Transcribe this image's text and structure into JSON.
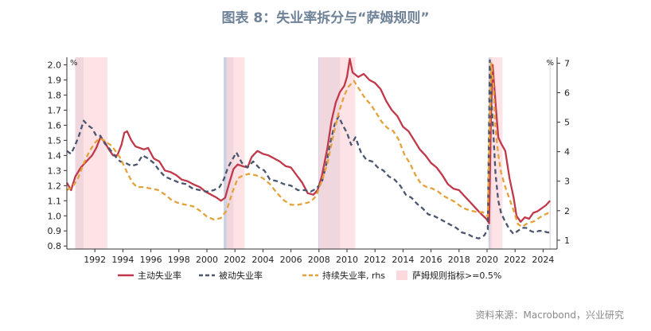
{
  "title": "图表 8：失业率拆分与“萨姆规则”",
  "source": "资料来源：Macrobond，兴业研究",
  "chart_data": {
    "type": "line",
    "title": "图表 8：失业率拆分与“萨姆规则”",
    "xlabel": "",
    "ylabel": "%",
    "y2label": "%",
    "xlim": [
      1990.0,
      2025.0
    ],
    "ylim": [
      0.78,
      2.05
    ],
    "y2lim": [
      0.7,
      7.2
    ],
    "xticks": [
      1992,
      1994,
      1996,
      1998,
      2000,
      2002,
      2004,
      2006,
      2008,
      2010,
      2012,
      2014,
      2016,
      2018,
      2020,
      2022,
      2024
    ],
    "xtick_labels": [
      "1992",
      "1994",
      "1996",
      "1998",
      "2000",
      "2002",
      "2004",
      "2006",
      "2008",
      "2010",
      "2012",
      "2014",
      "2016",
      "2018",
      "2020",
      "2022",
      "2024"
    ],
    "yticks": [
      0.8,
      0.9,
      1.0,
      1.1,
      1.2,
      1.3,
      1.4,
      1.5,
      1.6,
      1.7,
      1.8,
      1.9,
      2.0
    ],
    "ytick_labels": [
      "0.8",
      "0.9",
      "1.0",
      "1.1",
      "1.2",
      "1.3",
      "1.4",
      "1.5",
      "1.6",
      "1.7",
      "1.8",
      "1.9",
      "2.0"
    ],
    "y2ticks": [
      1,
      2,
      3,
      4,
      5,
      6,
      7
    ],
    "y2tick_labels": [
      "1",
      "2",
      "3",
      "4",
      "5",
      "6",
      "7"
    ],
    "legend_position": "bottom",
    "grid": false,
    "bands": [
      {
        "kind": "recession",
        "x0": 1990.6,
        "x1": 1991.2,
        "color": "#c8cee0"
      },
      {
        "kind": "recession",
        "x0": 2001.2,
        "x1": 2001.9,
        "color": "#c8cee0"
      },
      {
        "kind": "recession",
        "x0": 2007.95,
        "x1": 2009.5,
        "color": "#c8cee0"
      },
      {
        "kind": "recession",
        "x0": 2020.1,
        "x1": 2020.35,
        "color": "#c8cee0"
      },
      {
        "kind": "sahm",
        "x0": 1990.6,
        "x1": 1992.9,
        "color": "#fcd9dc"
      },
      {
        "kind": "sahm",
        "x0": 2001.4,
        "x1": 2002.7,
        "color": "#fcd9dc"
      },
      {
        "kind": "sahm",
        "x0": 2008.0,
        "x1": 2010.6,
        "color": "#fcd9dc"
      },
      {
        "kind": "sahm",
        "x0": 2020.2,
        "x1": 2021.1,
        "color": "#fcd9dc"
      }
    ],
    "vlines": [
      2024.5
    ],
    "series": [
      {
        "name": "主动失业率",
        "axis": "left",
        "color": "#c1384a",
        "dash": "solid",
        "x": [
          1990.0,
          1990.3,
          1990.6,
          1991.0,
          1991.4,
          1991.8,
          1992.1,
          1992.4,
          1992.7,
          1993.0,
          1993.3,
          1993.6,
          1993.9,
          1994.1,
          1994.3,
          1994.6,
          1994.9,
          1995.2,
          1995.5,
          1995.8,
          1996.2,
          1996.6,
          1997.0,
          1997.4,
          1997.8,
          1998.2,
          1998.6,
          1999.0,
          1999.5,
          1999.9,
          2000.3,
          2000.7,
          2001.0,
          2001.3,
          2001.6,
          2001.9,
          2002.2,
          2002.5,
          2002.9,
          2003.2,
          2003.6,
          2004.0,
          2004.4,
          2004.8,
          2005.2,
          2005.6,
          2006.0,
          2006.4,
          2006.8,
          2007.2,
          2007.6,
          2007.9,
          2008.2,
          2008.6,
          2008.9,
          2009.2,
          2009.5,
          2009.8,
          2010.0,
          2010.2,
          2010.4,
          2010.8,
          2011.2,
          2011.6,
          2012.0,
          2012.4,
          2012.8,
          2013.2,
          2013.6,
          2014.0,
          2014.4,
          2014.8,
          2015.2,
          2015.6,
          2016.0,
          2016.4,
          2016.8,
          2017.2,
          2017.6,
          2018.0,
          2018.4,
          2018.8,
          2019.2,
          2019.6,
          2019.95,
          2020.15,
          2020.28,
          2020.4,
          2020.6,
          2020.8,
          2021.0,
          2021.3,
          2021.6,
          2021.9,
          2022.1,
          2022.4,
          2022.7,
          2023.0,
          2023.3,
          2023.6,
          2023.9,
          2024.2,
          2024.5
        ],
        "values": [
          1.22,
          1.17,
          1.26,
          1.32,
          1.36,
          1.4,
          1.45,
          1.52,
          1.49,
          1.44,
          1.4,
          1.4,
          1.47,
          1.55,
          1.56,
          1.5,
          1.46,
          1.45,
          1.44,
          1.45,
          1.38,
          1.36,
          1.3,
          1.29,
          1.27,
          1.24,
          1.23,
          1.21,
          1.19,
          1.16,
          1.14,
          1.12,
          1.1,
          1.12,
          1.22,
          1.31,
          1.34,
          1.33,
          1.32,
          1.39,
          1.43,
          1.41,
          1.4,
          1.38,
          1.36,
          1.33,
          1.32,
          1.27,
          1.22,
          1.15,
          1.14,
          1.17,
          1.26,
          1.45,
          1.63,
          1.75,
          1.82,
          1.86,
          1.92,
          2.04,
          1.95,
          1.92,
          1.94,
          1.9,
          1.88,
          1.84,
          1.76,
          1.7,
          1.66,
          1.59,
          1.56,
          1.5,
          1.44,
          1.4,
          1.35,
          1.32,
          1.27,
          1.21,
          1.18,
          1.17,
          1.13,
          1.09,
          1.05,
          1.01,
          0.98,
          0.95,
          1.65,
          2.0,
          1.75,
          1.52,
          1.48,
          1.43,
          1.25,
          1.12,
          1.0,
          0.96,
          0.99,
          0.98,
          1.02,
          1.03,
          1.05,
          1.07,
          1.1
        ]
      },
      {
        "name": "被动失业率",
        "axis": "left",
        "color": "#4a566e",
        "dash": "dashed",
        "x": [
          1990.0,
          1990.3,
          1990.6,
          1990.9,
          1991.2,
          1991.5,
          1991.8,
          1992.1,
          1992.4,
          1992.7,
          1993.0,
          1993.4,
          1993.8,
          1994.2,
          1994.6,
          1995.0,
          1995.4,
          1995.8,
          1996.2,
          1996.6,
          1997.0,
          1997.5,
          1998.0,
          1998.5,
          1999.0,
          1999.5,
          2000.0,
          2000.5,
          2000.9,
          2001.2,
          2001.5,
          2001.8,
          2002.1,
          2002.5,
          2002.9,
          2003.3,
          2003.7,
          2004.1,
          2004.5,
          2005.0,
          2005.5,
          2006.0,
          2006.5,
          2007.0,
          2007.4,
          2007.8,
          2008.2,
          2008.5,
          2008.8,
          2009.1,
          2009.4,
          2009.7,
          2010.0,
          2010.3,
          2010.6,
          2011.0,
          2011.4,
          2011.8,
          2012.2,
          2012.6,
          2013.0,
          2013.4,
          2013.8,
          2014.2,
          2014.6,
          2015.0,
          2015.4,
          2015.8,
          2016.2,
          2016.6,
          2017.0,
          2017.4,
          2017.8,
          2018.2,
          2018.6,
          2019.0,
          2019.4,
          2019.8,
          2020.05,
          2020.2,
          2020.32,
          2020.45,
          2020.6,
          2020.8,
          2021.0,
          2021.3,
          2021.6,
          2021.9,
          2022.2,
          2022.5,
          2022.8,
          2023.1,
          2023.4,
          2023.7,
          2024.0,
          2024.3,
          2024.5
        ],
        "values": [
          1.43,
          1.41,
          1.47,
          1.54,
          1.63,
          1.6,
          1.58,
          1.53,
          1.53,
          1.48,
          1.45,
          1.4,
          1.36,
          1.35,
          1.33,
          1.34,
          1.4,
          1.38,
          1.35,
          1.3,
          1.26,
          1.24,
          1.22,
          1.21,
          1.18,
          1.17,
          1.16,
          1.17,
          1.19,
          1.24,
          1.32,
          1.37,
          1.42,
          1.35,
          1.32,
          1.36,
          1.32,
          1.3,
          1.24,
          1.23,
          1.21,
          1.2,
          1.17,
          1.17,
          1.16,
          1.18,
          1.22,
          1.33,
          1.48,
          1.6,
          1.66,
          1.6,
          1.55,
          1.47,
          1.52,
          1.42,
          1.37,
          1.36,
          1.32,
          1.3,
          1.26,
          1.24,
          1.2,
          1.14,
          1.12,
          1.08,
          1.05,
          1.01,
          1.0,
          0.98,
          0.96,
          0.94,
          0.92,
          0.89,
          0.88,
          0.86,
          0.85,
          0.87,
          0.91,
          2.03,
          1.75,
          1.55,
          1.28,
          1.1,
          1.02,
          0.96,
          0.91,
          0.88,
          0.9,
          0.92,
          0.92,
          0.9,
          0.89,
          0.9,
          0.9,
          0.89,
          0.89
        ]
      },
      {
        "name": "持续失业率, rhs",
        "axis": "right",
        "color": "#e3a23b",
        "dash": "dashed",
        "x": [
          1990.0,
          1990.4,
          1990.8,
          1991.2,
          1991.6,
          1992.0,
          1992.3,
          1992.6,
          1992.9,
          1993.2,
          1993.5,
          1993.8,
          1994.1,
          1994.4,
          1994.7,
          1995.0,
          1995.5,
          1996.0,
          1996.5,
          1997.0,
          1997.5,
          1998.0,
          1998.5,
          1999.0,
          1999.5,
          2000.0,
          2000.5,
          2001.0,
          2001.4,
          2001.8,
          2002.2,
          2002.6,
          2003.0,
          2003.5,
          2004.0,
          2004.5,
          2005.0,
          2005.5,
          2006.0,
          2006.5,
          2007.0,
          2007.4,
          2007.8,
          2008.2,
          2008.6,
          2009.0,
          2009.4,
          2009.8,
          2010.1,
          2010.5,
          2010.9,
          2011.3,
          2011.7,
          2012.1,
          2012.5,
          2012.9,
          2013.3,
          2013.7,
          2014.1,
          2014.5,
          2014.9,
          2015.3,
          2015.7,
          2016.1,
          2016.5,
          2016.9,
          2017.3,
          2017.7,
          2018.1,
          2018.5,
          2018.9,
          2019.3,
          2019.7,
          2020.05,
          2020.2,
          2020.3,
          2020.45,
          2020.6,
          2020.8,
          2021.0,
          2021.3,
          2021.6,
          2021.9,
          2022.2,
          2022.5,
          2022.8,
          2023.1,
          2023.4,
          2023.7,
          2024.0,
          2024.3,
          2024.5
        ],
        "values": [
          2.7,
          2.8,
          3.1,
          3.6,
          4.0,
          4.3,
          4.45,
          4.4,
          4.3,
          4.2,
          4.0,
          3.8,
          3.5,
          3.2,
          2.95,
          2.8,
          2.8,
          2.75,
          2.7,
          2.55,
          2.35,
          2.25,
          2.2,
          2.15,
          2.0,
          1.8,
          1.7,
          1.75,
          2.0,
          2.6,
          3.1,
          3.2,
          3.25,
          3.2,
          3.1,
          2.9,
          2.6,
          2.35,
          2.2,
          2.2,
          2.25,
          2.3,
          2.5,
          3.0,
          3.6,
          4.5,
          5.3,
          5.9,
          6.2,
          6.4,
          6.1,
          5.8,
          5.6,
          5.3,
          5.0,
          4.8,
          4.7,
          4.4,
          3.9,
          3.6,
          3.2,
          2.9,
          2.8,
          2.75,
          2.65,
          2.5,
          2.4,
          2.3,
          2.15,
          2.05,
          2.0,
          1.95,
          1.95,
          1.8,
          5.0,
          7.0,
          6.3,
          4.8,
          3.9,
          3.3,
          2.8,
          2.4,
          2.0,
          1.55,
          1.45,
          1.55,
          1.6,
          1.65,
          1.75,
          1.85,
          1.9,
          2.0
        ]
      }
    ],
    "legend": [
      {
        "label": "主动失业率",
        "kind": "line-solid",
        "color": "#c1384a"
      },
      {
        "label": "被动失业率",
        "kind": "line-dashed",
        "color": "#4a566e"
      },
      {
        "label": "持续失业率, rhs",
        "kind": "line-dashed",
        "color": "#e3a23b"
      },
      {
        "label": "萨姆规则指标>=0.5%",
        "kind": "area",
        "color": "#fcd9dc"
      }
    ]
  }
}
